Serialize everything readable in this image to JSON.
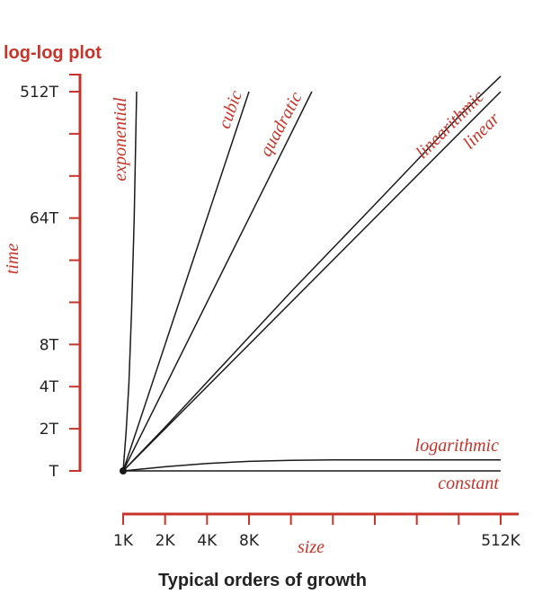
{
  "colors": {
    "accent": "#c8342a",
    "curve": "#1a1a1a",
    "text": "#222222"
  },
  "chart_data": {
    "type": "line",
    "title": "log-log plot",
    "caption": "Typical orders of growth",
    "xlabel": "size",
    "ylabel": "time",
    "xscale": "log",
    "yscale": "log",
    "xlim": [
      1,
      512
    ],
    "ylim": [
      1,
      512
    ],
    "grid": false,
    "legend": "none",
    "x_ticks": [
      1,
      2,
      4,
      8,
      16,
      32,
      64,
      128,
      256,
      512
    ],
    "x_tick_labels": [
      "1K",
      "2K",
      "4K",
      "8K",
      "",
      "",
      "",
      "",
      "",
      "512K"
    ],
    "y_ticks": [
      1,
      2,
      4,
      8,
      16,
      32,
      64,
      128,
      256,
      512
    ],
    "y_tick_labels": [
      "T",
      "2T",
      "4T",
      "8T",
      "",
      "",
      "64T",
      "",
      "",
      "512T"
    ],
    "origin": {
      "x": 1,
      "y": 1
    },
    "series": [
      {
        "name": "exponential",
        "x": [
          1,
          1.05,
          1.1,
          1.15,
          1.2,
          1.25
        ],
        "y": [
          1,
          1.9,
          4.2,
          14,
          64,
          512
        ]
      },
      {
        "name": "cubic",
        "x": [
          1,
          2,
          4,
          8
        ],
        "y": [
          1,
          8,
          64,
          512
        ]
      },
      {
        "name": "quadratic",
        "x": [
          1,
          2,
          4,
          8,
          16,
          22.6
        ],
        "y": [
          1,
          4,
          16,
          64,
          256,
          512
        ]
      },
      {
        "name": "linearithmic",
        "x": [
          1,
          2,
          4,
          16,
          64,
          256,
          512
        ],
        "y": [
          1,
          2.05,
          4.3,
          19,
          80,
          340,
          660
        ]
      },
      {
        "name": "linear",
        "x": [
          1,
          512
        ],
        "y": [
          1,
          512
        ]
      },
      {
        "name": "logarithmic",
        "x": [
          1,
          2,
          4,
          8,
          16,
          32,
          64,
          128,
          256,
          512
        ],
        "y": [
          1,
          1.07,
          1.13,
          1.17,
          1.19,
          1.2,
          1.2,
          1.2,
          1.2,
          1.2
        ]
      },
      {
        "name": "constant",
        "x": [
          1,
          512
        ],
        "y": [
          1,
          1
        ]
      }
    ]
  }
}
